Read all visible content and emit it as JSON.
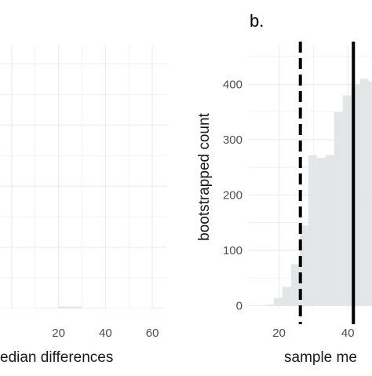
{
  "colors": {
    "background": "#ffffff",
    "grid": "#ebebeb",
    "bar_fill": "#e3e6e6",
    "dashed_line": "#000000",
    "solid_line": "#000000"
  },
  "chart_data": [
    {
      "panel_label": "",
      "type": "bar",
      "title": "",
      "xlabel": "edian differences",
      "ylabel": "",
      "xlim": [
        -5,
        66
      ],
      "ylim": [
        0,
        430
      ],
      "x_ticks": [
        20,
        40,
        60
      ],
      "y_ticks": [
        0,
        100,
        200,
        300,
        400
      ],
      "grid": true,
      "bin_width": 10,
      "bins": [
        {
          "x0": 0,
          "x1": 10,
          "count": 0
        },
        {
          "x0": 10,
          "x1": 20,
          "count": 1
        },
        {
          "x0": 20,
          "x1": 30,
          "count": 3
        },
        {
          "x0": 30,
          "x1": 40,
          "count": 1
        },
        {
          "x0": 40,
          "x1": 50,
          "count": 0
        },
        {
          "x0": 50,
          "x1": 60,
          "count": 0
        },
        {
          "x0": 60,
          "x1": 65,
          "count": 1
        }
      ]
    },
    {
      "panel_label": "b.",
      "type": "bar",
      "title": "",
      "xlabel": "sample me",
      "ylabel": "bootstrapped count",
      "xlim": [
        11,
        47
      ],
      "ylim": [
        -5,
        470
      ],
      "x_ticks": [
        20,
        40
      ],
      "y_ticks": [
        0,
        100,
        200,
        300,
        400
      ],
      "grid": true,
      "bin_width": 2.5,
      "bins": [
        {
          "x0": 16.0,
          "x1": 18.5,
          "count": 2
        },
        {
          "x0": 18.5,
          "x1": 21.0,
          "count": 14
        },
        {
          "x0": 21.0,
          "x1": 23.5,
          "count": 34
        },
        {
          "x0": 23.5,
          "x1": 26.0,
          "count": 75
        },
        {
          "x0": 26.0,
          "x1": 28.5,
          "count": 145
        },
        {
          "x0": 28.5,
          "x1": 31.0,
          "count": 272
        },
        {
          "x0": 31.0,
          "x1": 33.5,
          "count": 267
        },
        {
          "x0": 33.5,
          "x1": 36.0,
          "count": 272
        },
        {
          "x0": 36.0,
          "x1": 38.5,
          "count": 350
        },
        {
          "x0": 38.5,
          "x1": 41.0,
          "count": 380
        },
        {
          "x0": 41.0,
          "x1": 43.5,
          "count": 400
        },
        {
          "x0": 43.5,
          "x1": 46.0,
          "count": 410
        },
        {
          "x0": 46.0,
          "x1": 48.5,
          "count": 405
        }
      ],
      "vlines": [
        {
          "x": 26.2,
          "style": "dashed"
        },
        {
          "x": 41.6,
          "style": "solid"
        }
      ]
    }
  ]
}
